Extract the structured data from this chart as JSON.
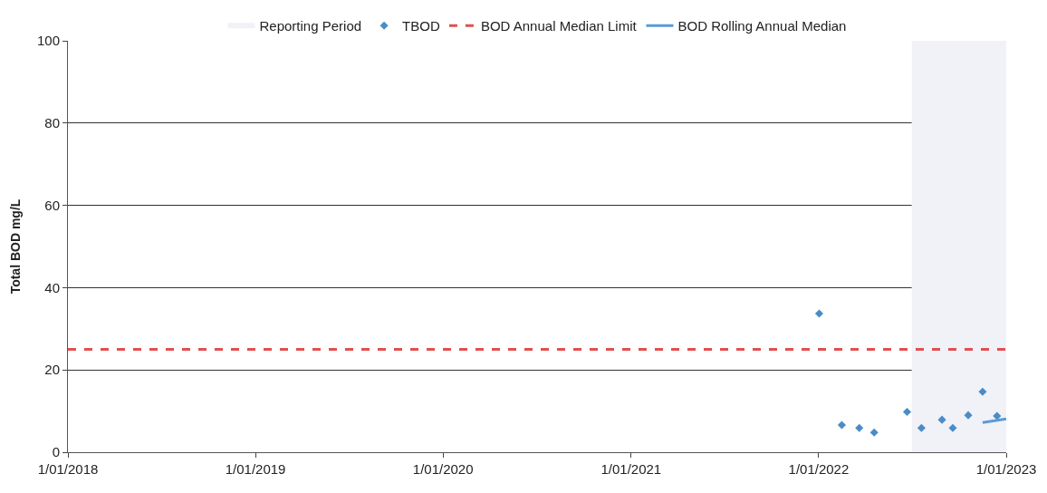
{
  "chart_data": {
    "type": "scatter",
    "ylabel": "Total BOD mg/L",
    "series": [
      {
        "name": "TBOD",
        "color": "#4a8cc8",
        "marker": "diamond",
        "x": [
          "2022-01-02",
          "2022-02-15",
          "2022-03-21",
          "2022-04-19",
          "2022-06-22",
          "2022-07-20",
          "2022-08-29",
          "2022-09-19",
          "2022-10-19",
          "2022-11-16",
          "2022-12-14"
        ],
        "values": [
          33.7,
          6.6,
          5.9,
          4.8,
          9.8,
          5.9,
          7.9,
          5.9,
          9.0,
          14.7,
          8.8
        ]
      },
      {
        "name": "BOD Rolling Annual Median",
        "type": "line",
        "color": "#5b9bd5",
        "marker": "none",
        "line_style": "solid",
        "x": [
          "2022-11-16",
          "2023-01-01"
        ],
        "values": [
          7.2,
          8.1
        ]
      }
    ],
    "ref_lines": [
      {
        "axis": "y",
        "value": 25,
        "label": "BOD Annual Median Limit",
        "color": "#e05050",
        "line_style": "dashed"
      }
    ],
    "bands": [
      {
        "axis": "x",
        "from": "2022-07-01",
        "to": "2023-01-01",
        "label": "Reporting Period",
        "color": "#f1f1f8"
      }
    ],
    "xlim": [
      "2018-01-01",
      "2023-01-01"
    ],
    "xticks": [
      {
        "value": "2018-01-01",
        "label": "1/01/2018"
      },
      {
        "value": "2019-01-01",
        "label": "1/01/2019"
      },
      {
        "value": "2020-01-01",
        "label": "1/01/2020"
      },
      {
        "value": "2021-01-01",
        "label": "1/01/2021"
      },
      {
        "value": "2022-01-01",
        "label": "1/01/2022"
      },
      {
        "value": "2023-01-01",
        "label": "1/01/2023"
      }
    ],
    "ylim": [
      0,
      100
    ],
    "yticks": [
      0,
      20,
      40,
      60,
      80,
      100
    ],
    "grid": "y",
    "legend": "top"
  }
}
